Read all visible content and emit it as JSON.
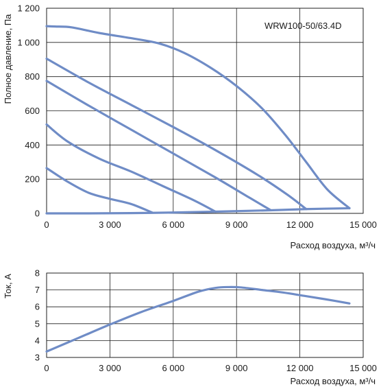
{
  "chart_data": [
    {
      "type": "line",
      "model_label": "WRW100-50/63.4D",
      "ylabel": "Полное давление, Па",
      "xlabel": "Расход воздуха, м³/ч",
      "xlim": [
        0,
        15000
      ],
      "ylim": [
        0,
        1200
      ],
      "x_ticks": [
        0,
        3000,
        6000,
        9000,
        12000,
        15000
      ],
      "x_tick_labels": [
        "0",
        "3 000",
        "6 000",
        "9 000",
        "12 000",
        "15 000"
      ],
      "y_ticks": [
        0,
        200,
        400,
        600,
        800,
        1000,
        1200
      ],
      "y_tick_labels": [
        "0",
        "200",
        "400",
        "600",
        "800",
        "1 000",
        "1 200"
      ],
      "grid": true,
      "series": [
        {
          "x": [
            0,
            400,
            1200,
            2500,
            4000,
            5300,
            6500,
            7800,
            9000,
            10200,
            11300,
            12300,
            13300,
            14350
          ],
          "y": [
            1095,
            1093,
            1088,
            1055,
            1025,
            995,
            940,
            850,
            745,
            615,
            460,
            300,
            140,
            30
          ]
        },
        {
          "x": [
            0,
            2000,
            4000,
            6000,
            8000,
            10000,
            11400,
            12300
          ],
          "y": [
            905,
            765,
            635,
            505,
            370,
            225,
            110,
            25
          ]
        },
        {
          "x": [
            0,
            2000,
            4000,
            6000,
            8000,
            9500,
            10600
          ],
          "y": [
            775,
            630,
            490,
            350,
            210,
            100,
            20
          ]
        },
        {
          "x": [
            0,
            1000,
            2500,
            4000,
            5500,
            7000,
            8000
          ],
          "y": [
            520,
            420,
            320,
            245,
            160,
            75,
            10
          ]
        },
        {
          "x": [
            0,
            1000,
            2000,
            3000,
            4000,
            5000
          ],
          "y": [
            265,
            185,
            120,
            85,
            55,
            5
          ]
        },
        {
          "x": [
            0,
            2000,
            5000,
            8000,
            10600,
            12300,
            14350
          ],
          "y": [
            0,
            0,
            3,
            10,
            18,
            25,
            30
          ]
        }
      ]
    },
    {
      "type": "line",
      "ylabel": "Ток, А",
      "xlabel": "Расход воздуха, м³/ч",
      "xlim": [
        0,
        15000
      ],
      "ylim": [
        3,
        8
      ],
      "x_ticks": [
        0,
        3000,
        6000,
        9000,
        12000,
        15000
      ],
      "x_tick_labels": [
        "0",
        "3 000",
        "6 000",
        "9 000",
        "12 000",
        "15 000"
      ],
      "y_ticks": [
        3,
        4,
        5,
        6,
        7,
        8
      ],
      "y_tick_labels": [
        "3",
        "4",
        "5",
        "6",
        "7",
        "8"
      ],
      "grid": true,
      "series": [
        {
          "x": [
            0,
            1500,
            3000,
            4500,
            6000,
            7200,
            8000,
            8600,
            9200,
            10200,
            11200,
            12200,
            13200,
            14350
          ],
          "y": [
            3.35,
            4.15,
            4.95,
            5.7,
            6.35,
            6.9,
            7.12,
            7.17,
            7.15,
            7.0,
            6.85,
            6.65,
            6.45,
            6.2
          ]
        }
      ]
    }
  ]
}
